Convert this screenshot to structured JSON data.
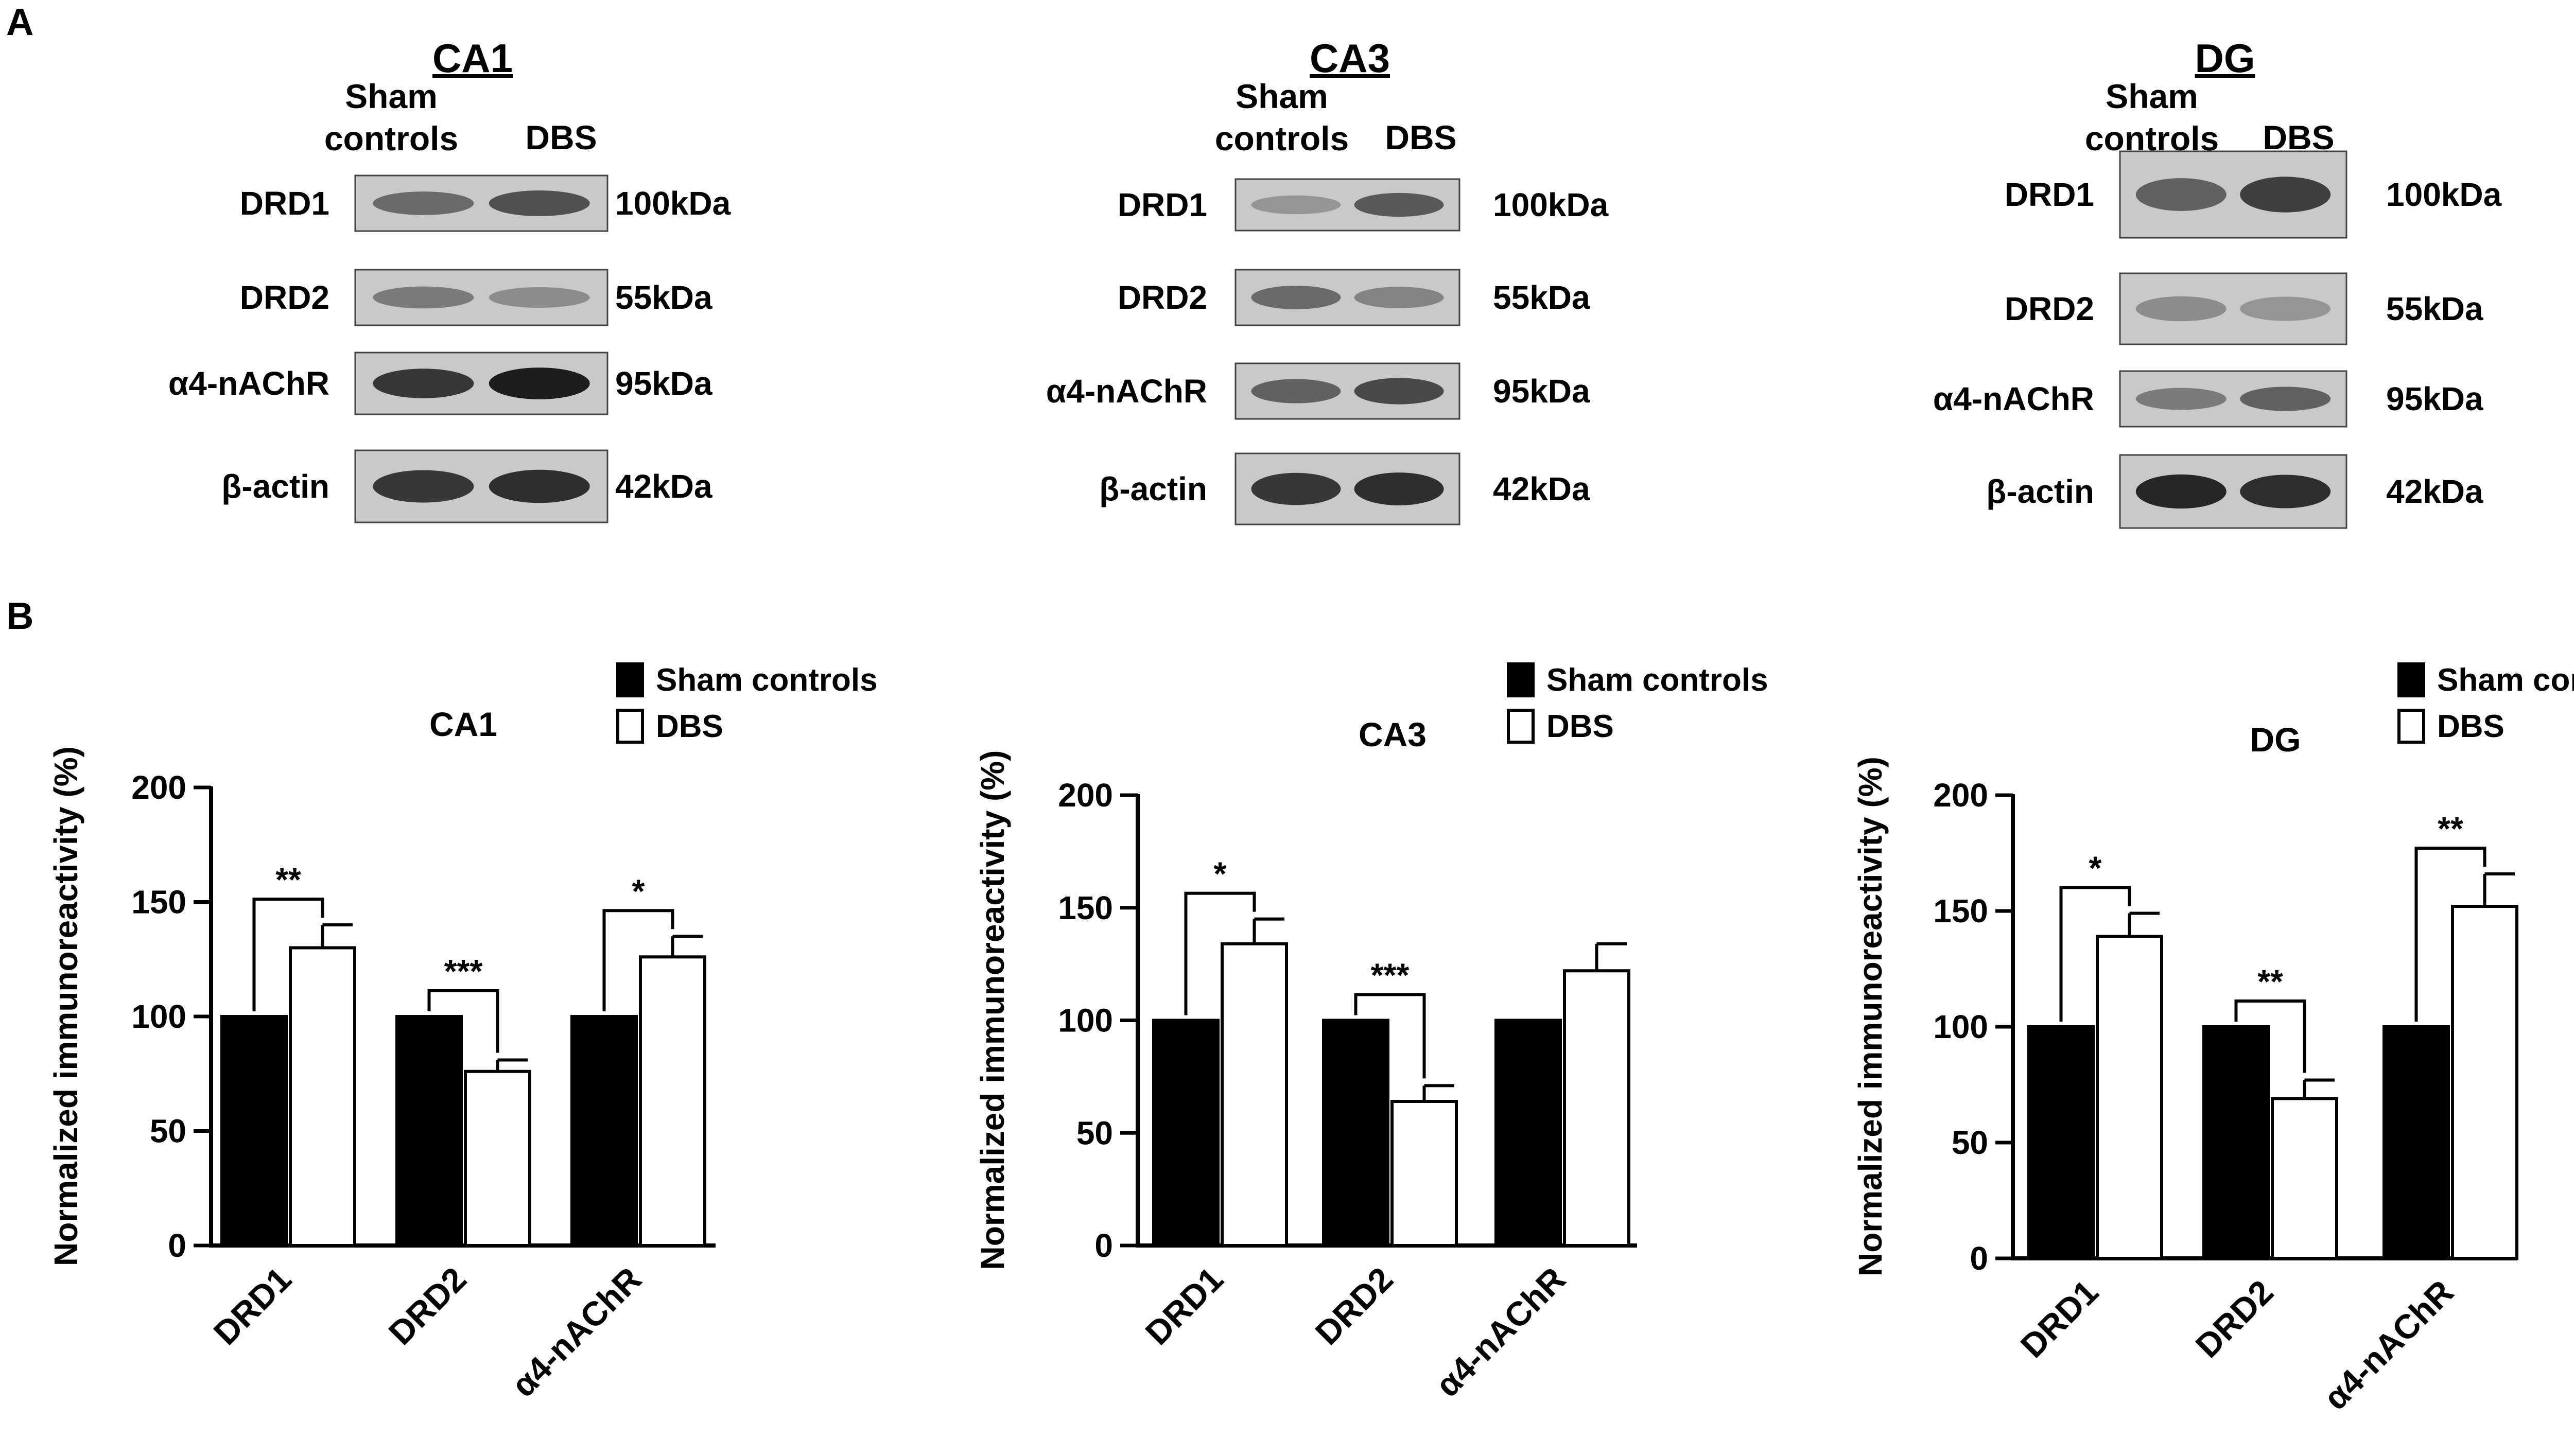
{
  "panels": {
    "A": "A",
    "B": "B"
  },
  "blots": [
    {
      "region": "CA1",
      "lanes": [
        "Sham\ncontrols",
        "DBS"
      ],
      "rows": [
        {
          "label": "DRD1",
          "kda": "100kDa",
          "bands": [
            0.55,
            0.7
          ]
        },
        {
          "label": "DRD2",
          "kda": "55kDa",
          "bands": [
            0.45,
            0.35
          ]
        },
        {
          "label": "α4-nAChR",
          "kda": "95kDa",
          "bands": [
            0.85,
            1.0
          ]
        },
        {
          "label": "β-actin",
          "kda": "42kDa",
          "bands": [
            0.85,
            0.9
          ]
        }
      ]
    },
    {
      "region": "CA3",
      "lanes": [
        "Sham\ncontrols",
        "DBS"
      ],
      "rows": [
        {
          "label": "DRD1",
          "kda": "100kDa",
          "bands": [
            0.3,
            0.65
          ]
        },
        {
          "label": "DRD2",
          "kda": "55kDa",
          "bands": [
            0.55,
            0.4
          ]
        },
        {
          "label": "α4-nAChR",
          "kda": "95kDa",
          "bands": [
            0.6,
            0.75
          ]
        },
        {
          "label": "β-actin",
          "kda": "42kDa",
          "bands": [
            0.85,
            0.9
          ]
        }
      ]
    },
    {
      "region": "DG",
      "lanes": [
        "Sham\ncontrols",
        "DBS"
      ],
      "rows": [
        {
          "label": "DRD1",
          "kda": "100kDa",
          "bands": [
            0.6,
            0.8
          ]
        },
        {
          "label": "DRD2",
          "kda": "55kDa",
          "bands": [
            0.35,
            0.3
          ]
        },
        {
          "label": "α4-nAChR",
          "kda": "95kDa",
          "bands": [
            0.45,
            0.6
          ]
        },
        {
          "label": "β-actin",
          "kda": "42kDa",
          "bands": [
            0.95,
            0.9
          ]
        }
      ]
    }
  ],
  "chart_data": [
    {
      "type": "bar",
      "title": "CA1",
      "ylabel": "Normalized immunoreactivity (%)",
      "categories": [
        "DRD1",
        "DRD2",
        "α4-nAChR"
      ],
      "ylim": [
        0,
        200
      ],
      "yticks": [
        0,
        50,
        100,
        150,
        200
      ],
      "series": [
        {
          "name": "Sham controls",
          "color": "#000000",
          "values": [
            100,
            100,
            100
          ],
          "errors": [
            0,
            0,
            0
          ]
        },
        {
          "name": "DBS",
          "color": "#ffffff",
          "values": [
            130,
            76,
            126
          ],
          "errors": [
            10,
            5,
            9
          ]
        }
      ],
      "significance": [
        "**",
        "***",
        "*"
      ],
      "legend": "top-right"
    },
    {
      "type": "bar",
      "title": "CA3",
      "ylabel": "Normalized immunoreactivity (%)",
      "categories": [
        "DRD1",
        "DRD2",
        "α4-nAChR"
      ],
      "ylim": [
        0,
        200
      ],
      "yticks": [
        0,
        50,
        100,
        150,
        200
      ],
      "series": [
        {
          "name": "Sham controls",
          "color": "#000000",
          "values": [
            100,
            100,
            100
          ],
          "errors": [
            0,
            0,
            0
          ]
        },
        {
          "name": "DBS",
          "color": "#ffffff",
          "values": [
            134,
            64,
            122
          ],
          "errors": [
            11,
            7,
            12
          ]
        }
      ],
      "significance": [
        "*",
        "***",
        ""
      ],
      "legend": "top-right"
    },
    {
      "type": "bar",
      "title": "DG",
      "ylabel": "Normalized immunoreactivity (%)",
      "categories": [
        "DRD1",
        "DRD2",
        "α4-nAChR"
      ],
      "ylim": [
        0,
        200
      ],
      "yticks": [
        0,
        50,
        100,
        150,
        200
      ],
      "series": [
        {
          "name": "Sham controls",
          "color": "#000000",
          "values": [
            100,
            100,
            100
          ],
          "errors": [
            0,
            0,
            0
          ]
        },
        {
          "name": "DBS",
          "color": "#ffffff",
          "values": [
            139,
            69,
            152
          ],
          "errors": [
            10,
            8,
            14
          ]
        }
      ],
      "significance": [
        "*",
        "**",
        "**"
      ],
      "legend": "top-right"
    }
  ]
}
